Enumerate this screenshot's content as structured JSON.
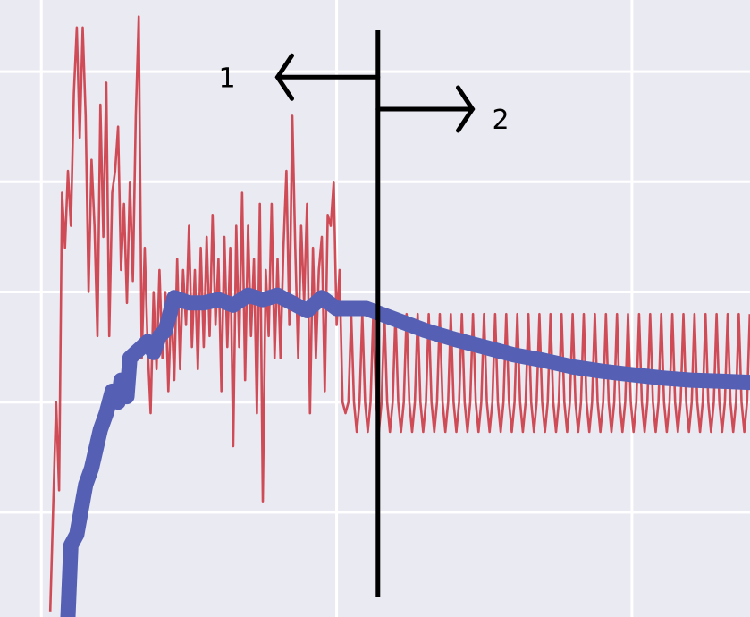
{
  "chart_data": {
    "type": "line",
    "title": "",
    "xlabel": "",
    "ylabel": "",
    "xlim": [
      -0.14,
      2.4
    ],
    "ylim": [
      -0.95,
      4.65
    ],
    "x_gridlines": [
      0,
      1,
      2
    ],
    "y_gridlines": [
      0,
      1,
      2,
      3,
      4
    ],
    "grid": true,
    "legend": "none",
    "colors": {
      "background": "#eaeaf2",
      "grid": "#ffffff",
      "raw_series": "#cc3b46",
      "smoothed_series": "#5560b5",
      "annotation": "#000000"
    },
    "series": [
      {
        "role": "raw",
        "x": [
          0.03,
          0.05,
          0.06,
          0.07,
          0.08,
          0.09,
          0.1,
          0.11,
          0.12,
          0.13,
          0.14,
          0.15,
          0.16,
          0.17,
          0.18,
          0.19,
          0.2,
          0.21,
          0.22,
          0.23,
          0.24,
          0.25,
          0.26,
          0.27,
          0.28,
          0.29,
          0.3,
          0.31,
          0.32,
          0.33,
          0.34,
          0.35,
          0.36,
          0.37,
          0.38,
          0.39,
          0.4,
          0.41,
          0.42,
          0.43,
          0.44,
          0.45,
          0.46,
          0.47,
          0.48,
          0.49,
          0.5,
          0.51,
          0.52,
          0.53,
          0.54,
          0.55,
          0.56,
          0.57,
          0.58,
          0.59,
          0.6,
          0.61,
          0.62,
          0.63,
          0.64,
          0.65,
          0.66,
          0.67,
          0.68,
          0.69,
          0.7,
          0.71,
          0.72,
          0.73,
          0.74,
          0.75,
          0.76,
          0.77,
          0.78,
          0.79,
          0.8,
          0.81,
          0.82,
          0.83,
          0.84,
          0.85,
          0.86,
          0.87,
          0.88,
          0.89,
          0.9,
          0.91,
          0.92,
          0.93,
          0.94,
          0.95,
          0.96,
          0.97,
          0.98,
          0.99,
          1.0,
          1.01,
          1.02,
          1.03,
          1.04
        ],
        "y": [
          -0.9,
          1.0,
          0.2,
          2.9,
          2.4,
          3.1,
          2.6,
          3.8,
          4.4,
          3.4,
          4.4,
          3.6,
          2.0,
          3.2,
          2.6,
          1.6,
          3.7,
          2.5,
          3.9,
          1.6,
          2.9,
          3.1,
          3.5,
          2.2,
          2.8,
          1.9,
          3.0,
          2.1,
          3.6,
          4.5,
          1.4,
          2.4,
          1.5,
          0.9,
          2.0,
          1.3,
          2.2,
          1.4,
          2.0,
          1.1,
          1.9,
          1.2,
          2.3,
          1.3,
          2.2,
          1.7,
          2.6,
          1.5,
          2.2,
          1.3,
          2.4,
          1.5,
          2.5,
          1.6,
          2.7,
          1.7,
          2.3,
          1.1,
          2.5,
          1.5,
          2.4,
          0.6,
          2.6,
          1.5,
          2.9,
          1.2,
          2.6,
          1.6,
          2.3,
          0.9,
          2.8,
          0.1,
          2.2,
          1.6,
          2.8,
          1.4,
          2.3,
          1.4,
          2.4,
          3.1,
          1.7,
          3.6,
          2.4,
          1.4,
          2.6,
          1.9,
          2.8,
          0.9,
          2.4,
          1.4,
          2.2,
          2.5,
          1.1,
          2.7,
          2.6,
          3.0,
          1.7,
          2.2,
          1.0,
          0.9,
          1.0
        ]
      },
      {
        "role": "raw-periodic",
        "period": 0.0375,
        "x_start": 1.04,
        "x_end": 2.4,
        "y_peak": 1.8,
        "y_mid": 1.0,
        "y_trough": 0.73
      },
      {
        "role": "smoothed",
        "x": [
          0.09,
          0.1,
          0.12,
          0.15,
          0.17,
          0.2,
          0.22,
          0.24,
          0.26,
          0.27,
          0.29,
          0.3,
          0.32,
          0.34,
          0.36,
          0.38,
          0.4,
          0.42,
          0.45,
          0.5,
          0.55,
          0.6,
          0.65,
          0.7,
          0.75,
          0.8,
          0.85,
          0.9,
          0.95,
          1.0,
          1.05,
          1.1,
          1.2,
          1.3,
          1.4,
          1.5,
          1.6,
          1.7,
          1.8,
          1.9,
          2.0,
          2.1,
          2.2,
          2.3,
          2.4
        ],
        "y": [
          -0.95,
          -0.3,
          -0.2,
          0.25,
          0.4,
          0.75,
          0.9,
          1.1,
          1.0,
          1.2,
          1.05,
          1.4,
          1.45,
          1.5,
          1.55,
          1.45,
          1.6,
          1.65,
          1.95,
          1.9,
          1.9,
          1.93,
          1.88,
          1.97,
          1.93,
          1.97,
          1.9,
          1.83,
          1.95,
          1.85,
          1.85,
          1.85,
          1.75,
          1.65,
          1.57,
          1.5,
          1.43,
          1.38,
          1.32,
          1.28,
          1.25,
          1.22,
          1.2,
          1.19,
          1.18
        ]
      }
    ],
    "annotations": {
      "divider_x": 1.14,
      "left": {
        "label": "1",
        "x_from": 1.14,
        "x_to": 0.8,
        "y": 3.95
      },
      "right": {
        "label": "2",
        "x_from": 1.14,
        "x_to": 1.46,
        "y": 3.66
      }
    }
  }
}
